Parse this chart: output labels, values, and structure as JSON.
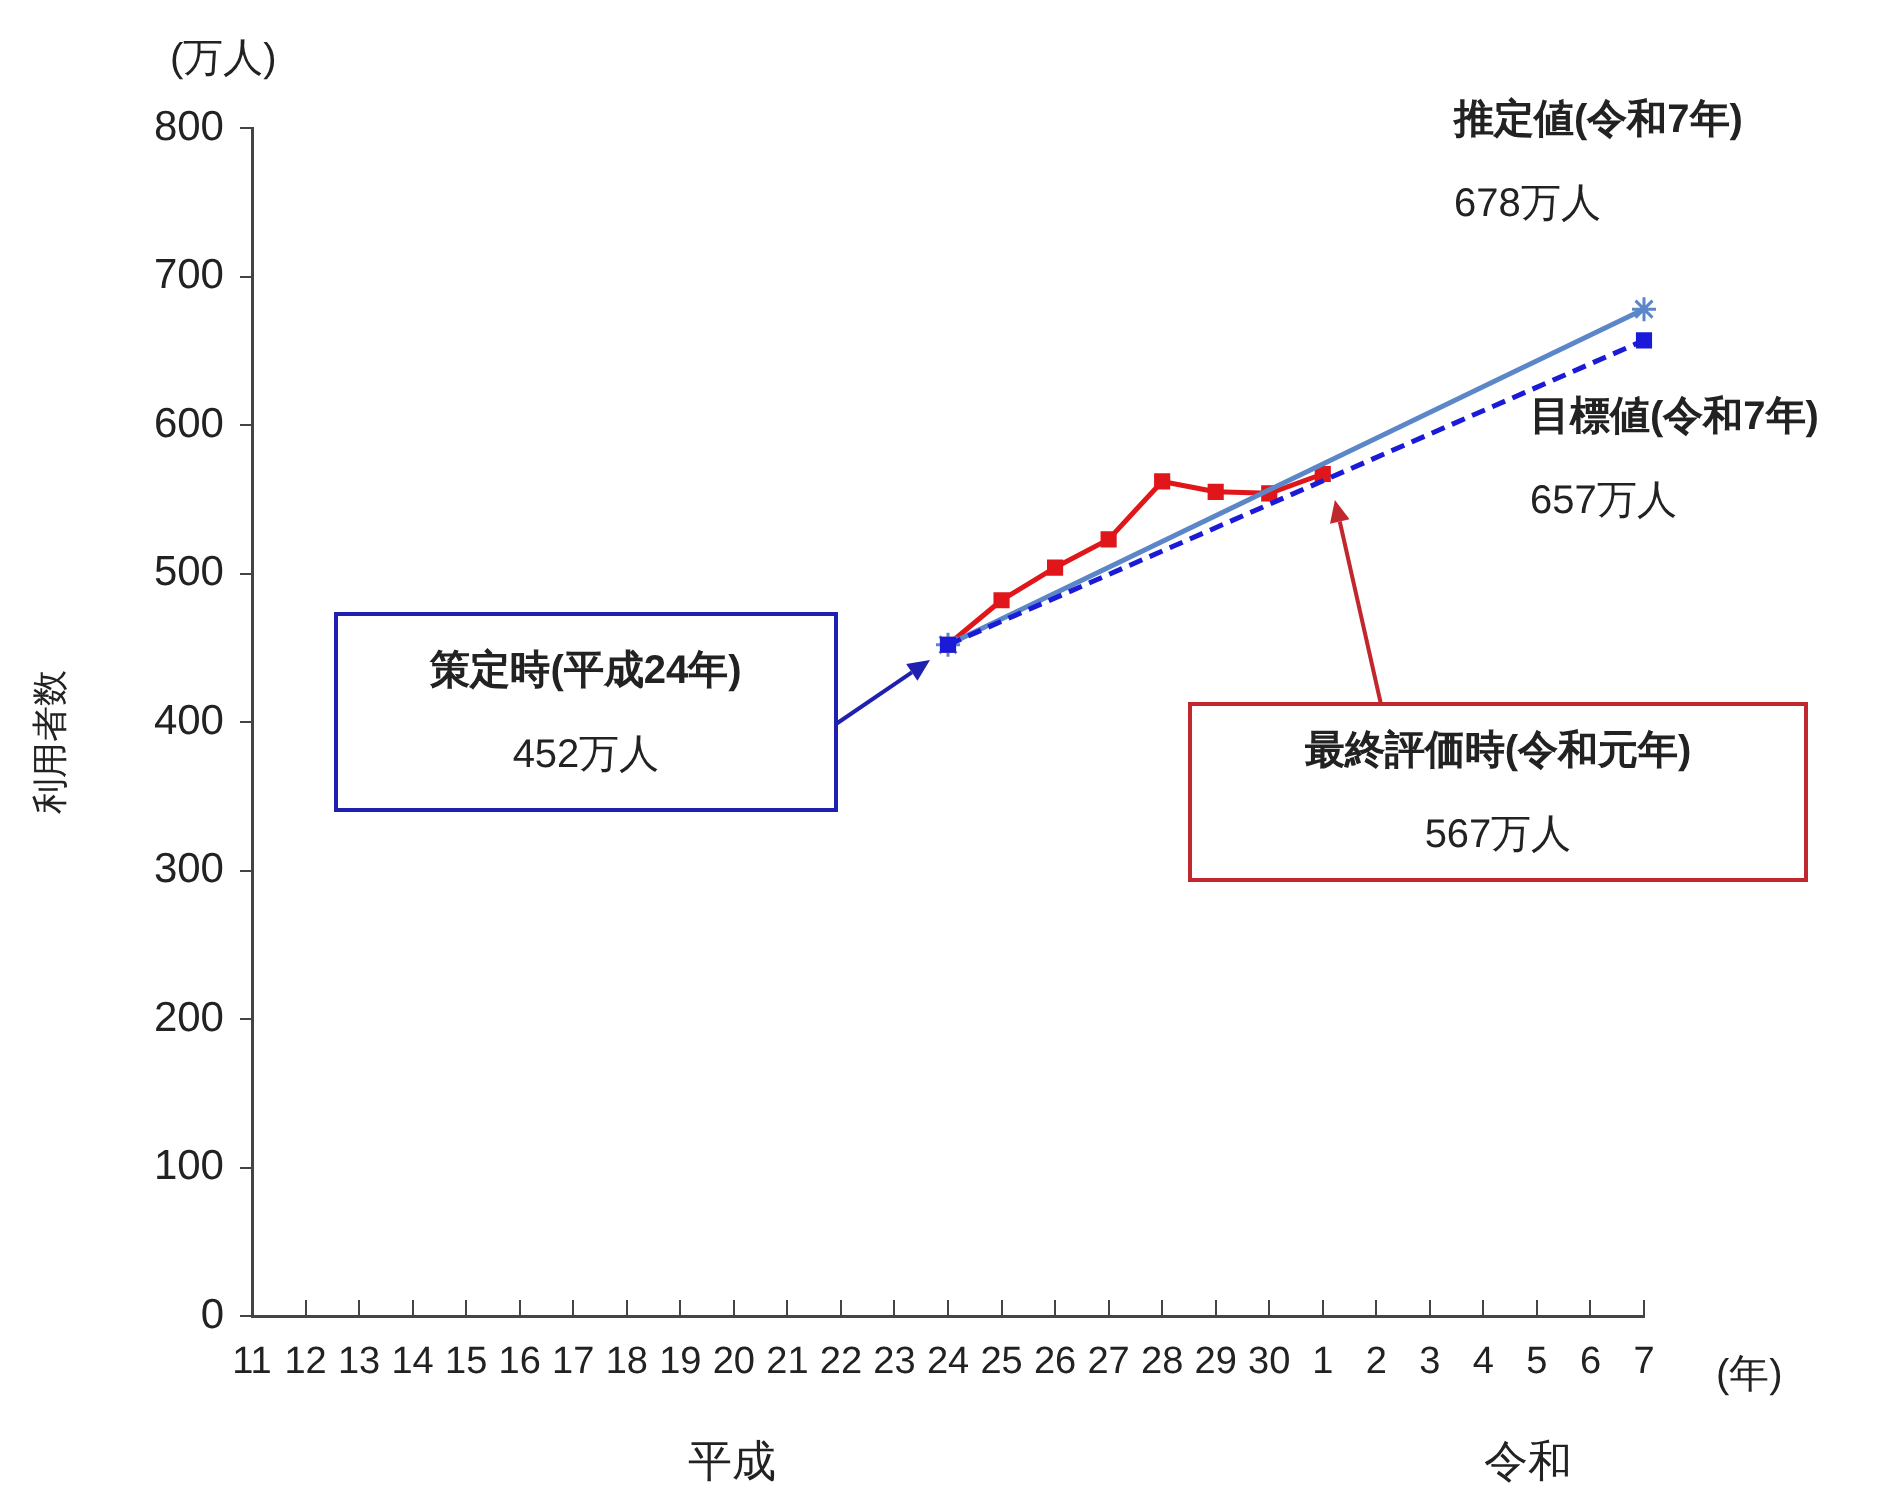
{
  "chart_data": {
    "type": "line",
    "ylabel": "利用者数",
    "xlabel": "(年)",
    "categories": [
      "11",
      "12",
      "13",
      "14",
      "15",
      "16",
      "17",
      "18",
      "19",
      "20",
      "21",
      "22",
      "23",
      "24",
      "25",
      "26",
      "27",
      "28",
      "29",
      "30",
      "1",
      "2",
      "3",
      "4",
      "5",
      "6",
      "7"
    ],
    "series": [
      {
        "color": "#e0161b",
        "marker": "square",
        "line_style": "solid",
        "values": [
          null,
          null,
          null,
          null,
          null,
          null,
          null,
          null,
          null,
          null,
          null,
          null,
          null,
          452,
          482,
          504,
          523,
          562,
          555,
          554,
          567,
          null,
          null,
          null,
          null,
          null,
          null
        ]
      },
      {
        "color": "#5b86c8",
        "marker": "cross",
        "line_style": "solid",
        "values": [
          null,
          null,
          null,
          null,
          null,
          null,
          null,
          null,
          null,
          null,
          null,
          null,
          null,
          452,
          null,
          null,
          null,
          null,
          null,
          null,
          null,
          null,
          null,
          null,
          null,
          null,
          678
        ]
      },
      {
        "color": "#1a1ad8",
        "marker": "square",
        "line_style": "dashed",
        "values": [
          null,
          null,
          null,
          null,
          null,
          null,
          null,
          null,
          null,
          null,
          null,
          null,
          null,
          452,
          null,
          null,
          null,
          null,
          null,
          null,
          null,
          null,
          null,
          null,
          null,
          null,
          657
        ]
      }
    ],
    "ylim": [
      0,
      800
    ],
    "yticks": [
      0,
      100,
      200,
      300,
      400,
      500,
      600,
      700,
      800
    ],
    "grid": false,
    "legend": false,
    "annotations": [
      "(万人)",
      "平成",
      "令和",
      "策定時(平成24年)\n452万人",
      "最終評価時(令和元年)\n567万人",
      {
        "text": "推定値(令和7年)\n678万人",
        "x": "7",
        "y": 678
      },
      {
        "text": "目標値(令和7年)\n657万人",
        "x": "7",
        "y": 657
      }
    ]
  }
}
